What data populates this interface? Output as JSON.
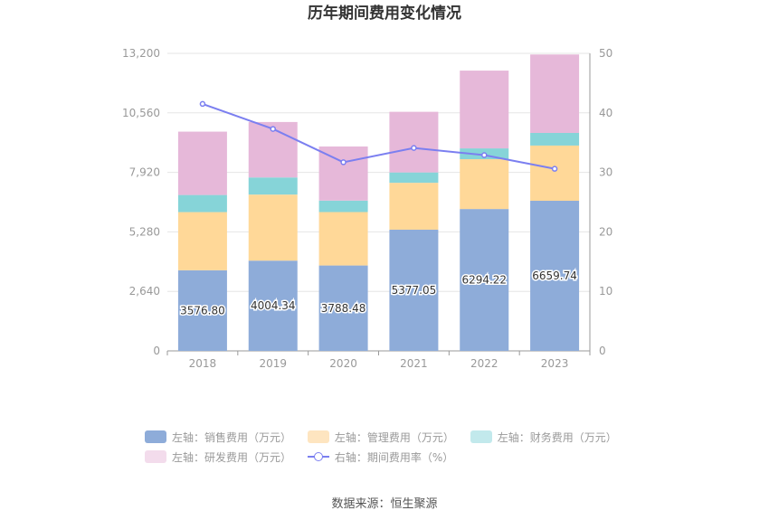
{
  "chart_data": {
    "type": "bar",
    "title": "历年期间费用变化情况",
    "categories": [
      "2018",
      "2019",
      "2020",
      "2021",
      "2022",
      "2023"
    ],
    "stacked": true,
    "series": [
      {
        "name": "左轴：销售费用（万元）",
        "axis": "left",
        "color": "#8eacd9",
        "values": [
          3576.8,
          4004.34,
          3788.48,
          5377.05,
          6294.22,
          6659.74
        ],
        "labels": [
          "3576.80",
          "4004.34",
          "3788.48",
          "5377.05",
          "6294.22",
          "6659.74"
        ]
      },
      {
        "name": "左轴：管理费用（万元）",
        "axis": "left",
        "color": "#ffd898",
        "values": [
          2580,
          2930,
          2370,
          2080,
          2210,
          2450
        ]
      },
      {
        "name": "左轴：财务费用（万元）",
        "axis": "left",
        "color": "#86d4d8",
        "values": [
          760,
          760,
          510,
          460,
          480,
          560
        ]
      },
      {
        "name": "左轴：研发费用（万元）",
        "axis": "left",
        "color": "#e6b8d9",
        "values": [
          2810,
          2460,
          2400,
          2690,
          3450,
          3480
        ]
      },
      {
        "name": "右轴：期间费用率（%）",
        "axis": "right",
        "type": "line",
        "color": "#7b7ff0",
        "values": [
          41.5,
          37.3,
          31.7,
          34.1,
          32.9,
          30.6
        ]
      }
    ],
    "left_axis": {
      "range": [
        0,
        13200
      ],
      "ticks": [
        "0",
        "2,640",
        "5,280",
        "7,920",
        "10,560",
        "13,200"
      ],
      "tick_values": [
        0,
        2640,
        5280,
        7920,
        10560,
        13200
      ]
    },
    "right_axis": {
      "range": [
        0,
        50
      ],
      "ticks": [
        "0",
        "10",
        "20",
        "30",
        "40",
        "50"
      ],
      "tick_values": [
        0,
        10,
        20,
        30,
        40,
        50
      ]
    },
    "grid": true,
    "legend_position": "bottom"
  },
  "source": "数据来源：恒生聚源"
}
